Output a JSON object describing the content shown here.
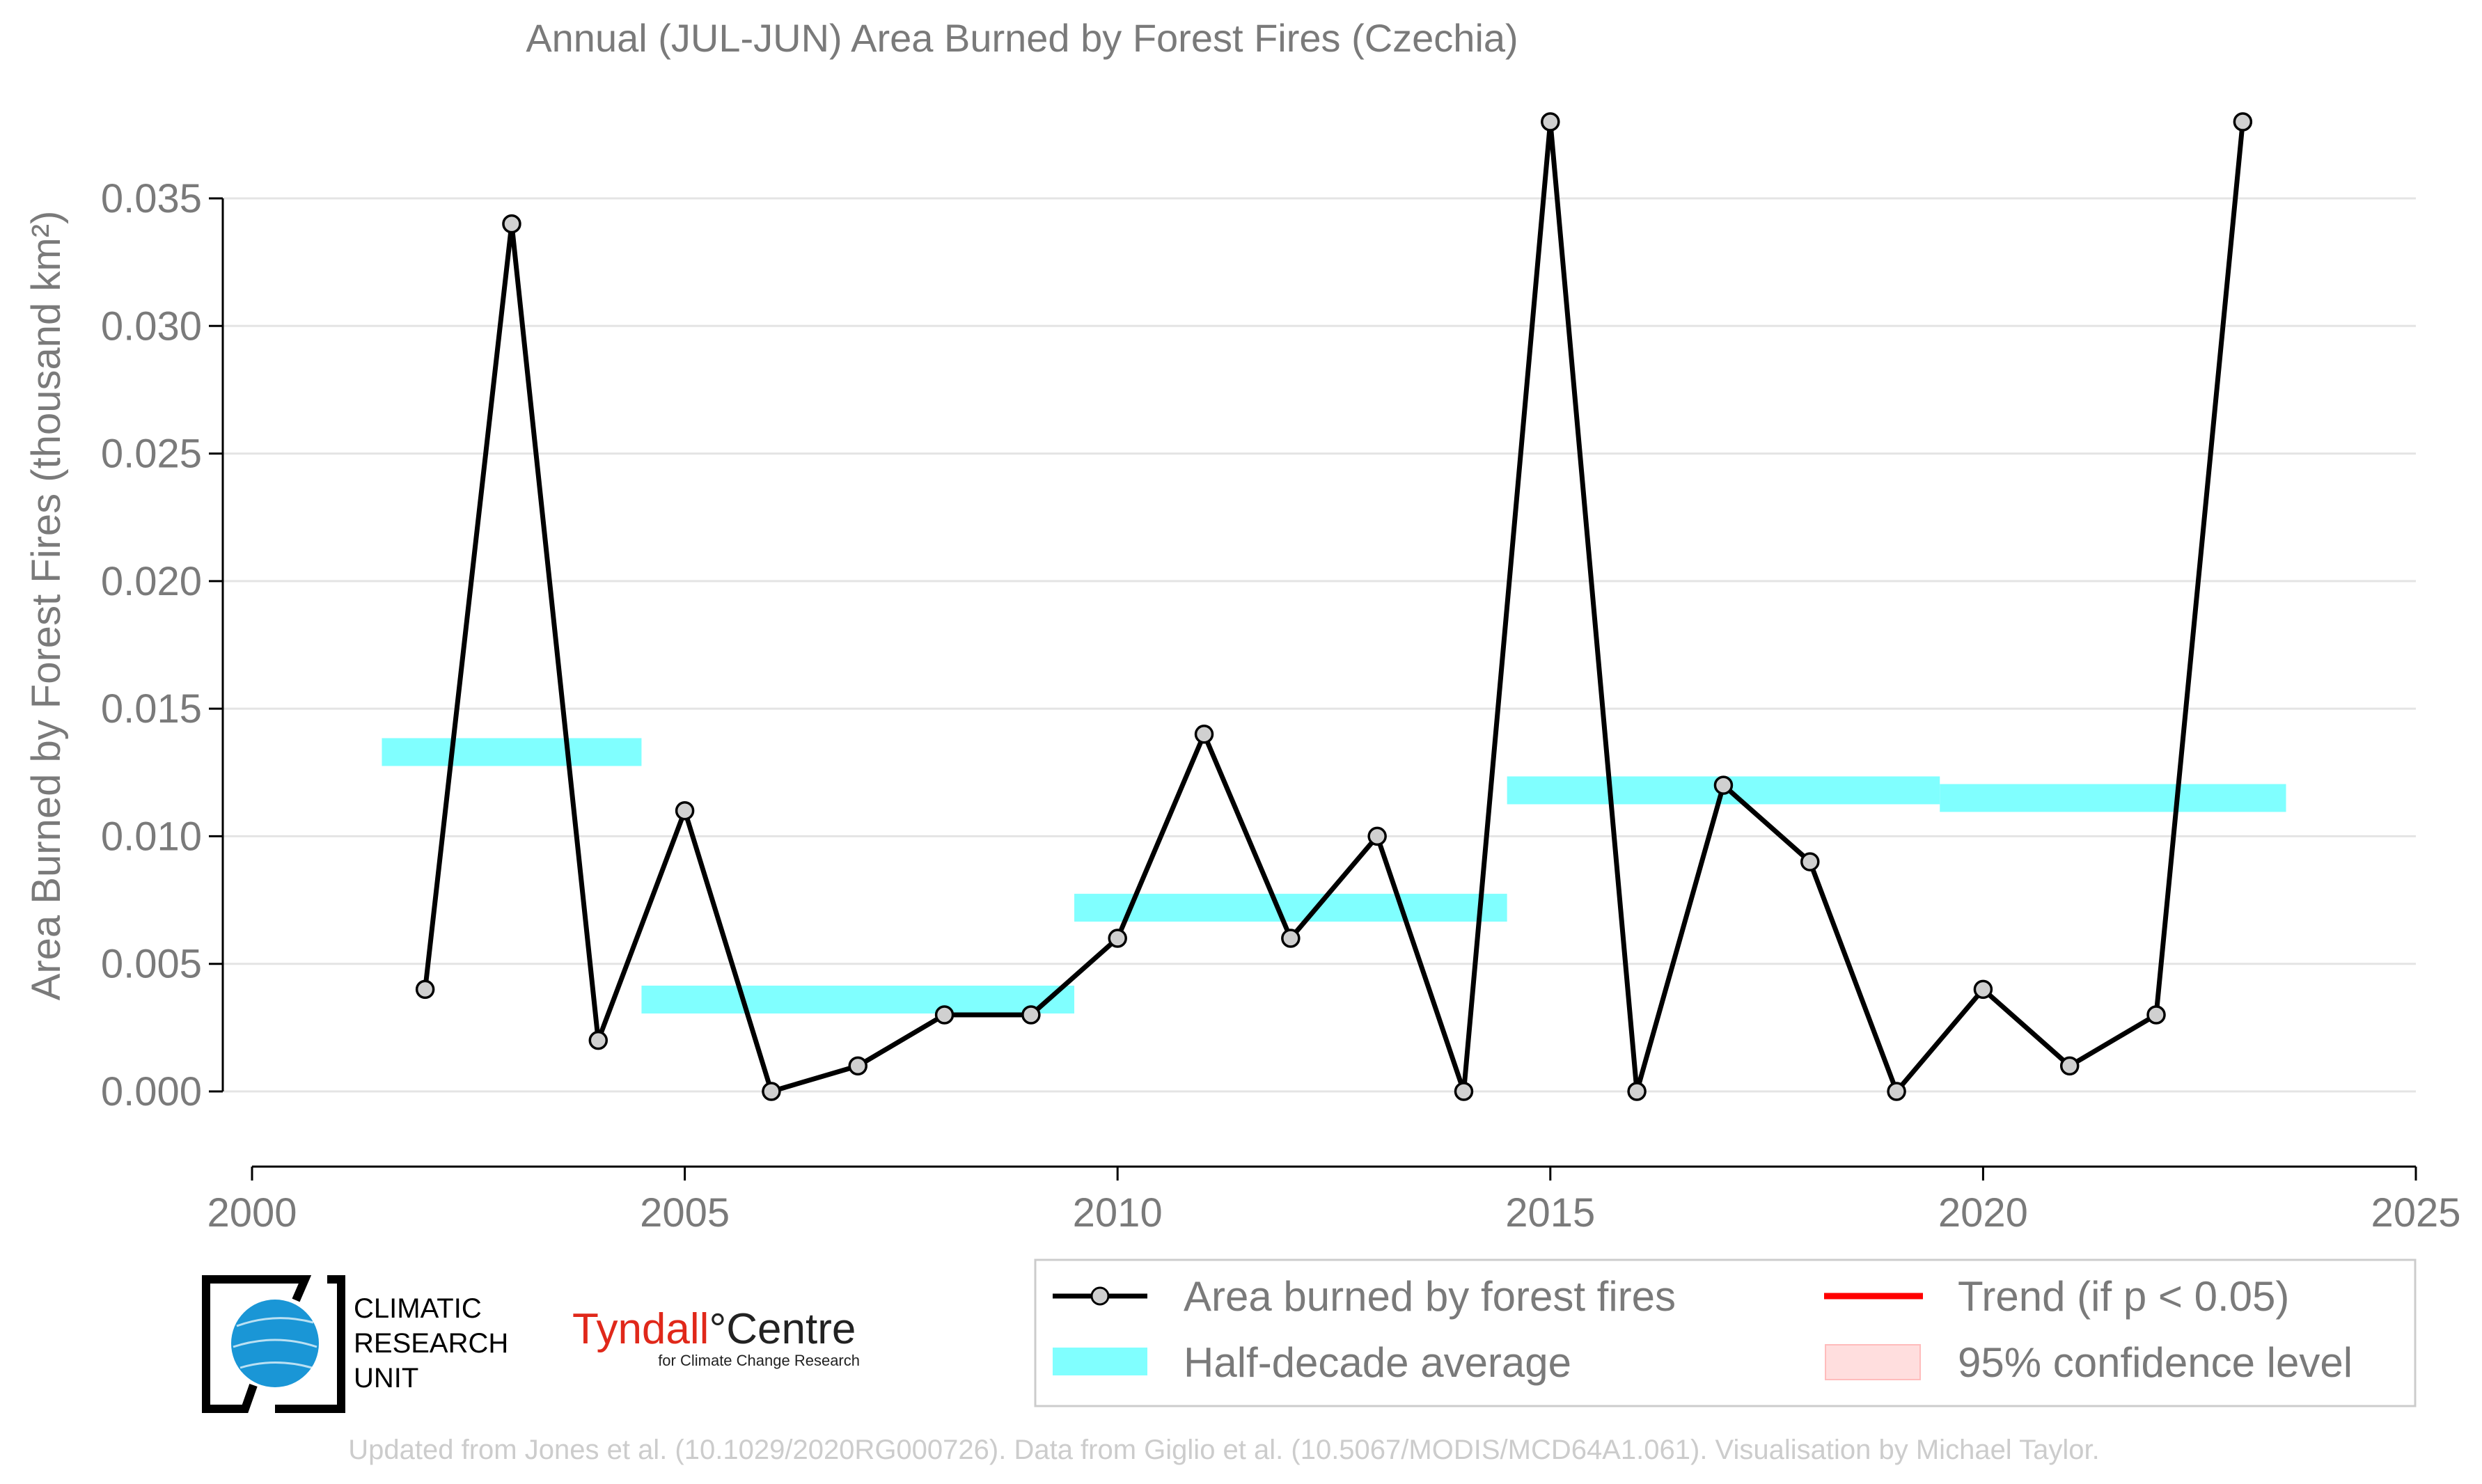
{
  "chart_data": {
    "type": "line",
    "title": "Annual (JUL-JUN) Area Burned by Forest Fires (Czechia)",
    "xlabel": "",
    "ylabel": "Area Burned by Forest Fires (thousand km²)",
    "xlim": [
      2000,
      2025
    ],
    "ylim": [
      -0.003,
      0.0395
    ],
    "x_ticks": [
      2000,
      2005,
      2010,
      2015,
      2020,
      2025
    ],
    "x_tick_labels": [
      "2000",
      "2005",
      "2010",
      "2015",
      "2020",
      "2025"
    ],
    "y_ticks": [
      0,
      0.005,
      0.01,
      0.015,
      0.02,
      0.025,
      0.03,
      0.035
    ],
    "y_tick_labels": [
      "0.000",
      "0.005",
      "0.010",
      "0.015",
      "0.020",
      "0.025",
      "0.030",
      "0.035"
    ],
    "grid": "horizontal",
    "series": [
      {
        "name": "Area burned by forest fires",
        "color": "#000000",
        "marker_fill": "#d0d0d0",
        "x": [
          2002,
          2003,
          2004,
          2005,
          2006,
          2007,
          2008,
          2009,
          2010,
          2011,
          2012,
          2013,
          2014,
          2015,
          2016,
          2017,
          2018,
          2019,
          2020,
          2021,
          2022,
          2023
        ],
        "y": [
          0.004,
          0.034,
          0.002,
          0.011,
          0.0,
          0.001,
          0.003,
          0.003,
          0.006,
          0.014,
          0.006,
          0.01,
          0.0,
          0.038,
          0.0,
          0.012,
          0.009,
          0.0,
          0.004,
          0.001,
          0.003,
          0.038
        ]
      }
    ],
    "half_decade_average": {
      "name": "Half-decade average",
      "color": "#80ffff",
      "segments": [
        {
          "x0": 2001.5,
          "x1": 2004.5,
          "y": 0.0133
        },
        {
          "x0": 2004.5,
          "x1": 2009.5,
          "y": 0.0036
        },
        {
          "x0": 2009.5,
          "x1": 2014.5,
          "y": 0.0072
        },
        {
          "x0": 2014.5,
          "x1": 2019.5,
          "y": 0.0118
        },
        {
          "x0": 2019.5,
          "x1": 2023.5,
          "y": 0.0115
        }
      ]
    },
    "legend": {
      "placement": "bottom-right",
      "entries": [
        {
          "label": "Area burned by forest fires",
          "kind": "line-marker",
          "color": "#000000"
        },
        {
          "label": "Trend (if p < 0.05)",
          "kind": "line",
          "color": "#ff0000"
        },
        {
          "label": "Half-decade average",
          "kind": "band",
          "color": "#80ffff"
        },
        {
          "label": "95% confidence level",
          "kind": "patch",
          "color": "#ffdede"
        }
      ]
    }
  },
  "logos": {
    "cru": {
      "line1": "CLIMATIC",
      "line2": "RESEARCH",
      "line3": "UNIT"
    },
    "tyndall": {
      "name_red": "Tyndall",
      "degree": "°",
      "name_black": "Centre",
      "subtitle": "for Climate Change Research"
    }
  },
  "footer": "Updated from Jones et al. (10.1029/2020RG000726). Data from Giglio et al. (10.5067/MODIS/MCD64A1.061). Visualisation by Michael Taylor."
}
